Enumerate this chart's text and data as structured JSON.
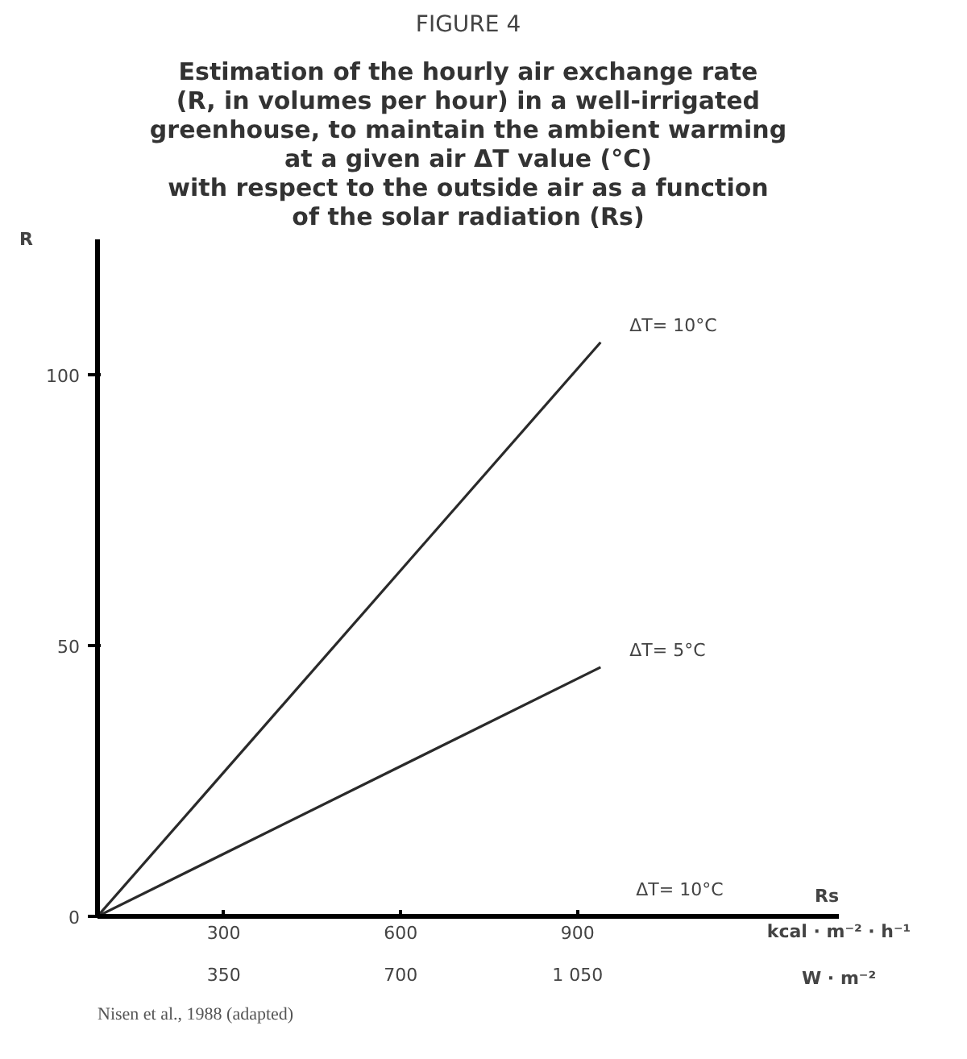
{
  "chart_data": {
    "type": "line",
    "title": "FIGURE 4",
    "subtitle": "Estimation of the hourly air exchange rate\n(R, in volumes per hour) in a well-irrigated\ngreenhouse, to maintain the ambient warming\nat a given air ΔT value (°C)\nwith respect to the outside air as a function\nof the solar radiation (Rs)",
    "ylabel": "R",
    "xlabel": "kcal · m⁻² · h⁻¹",
    "x2label": "W · m⁻²",
    "series": [
      {
        "name": "ΔT= 10°C",
        "color": "#2a2a2a",
        "values": [
          0,
          106
        ]
      },
      {
        "name": "ΔT= 5°C",
        "color": "#2a2a2a",
        "values": [
          0,
          46
        ]
      }
    ],
    "x": [
      86,
      939
    ],
    "xlim": [
      86,
      1343
    ],
    "xticks": [
      300,
      600,
      900
    ],
    "x2lim": [
      100,
      1567
    ],
    "x2ticks": [
      350,
      700,
      {
        "value": 1050,
        "label": "1 050"
      }
    ],
    "ylim": [
      0,
      125
    ],
    "yticks": [
      0,
      50,
      100
    ],
    "grid": false,
    "marker": "none",
    "line_style": "solid",
    "annotations": [
      "Rs",
      "ΔT= 10°C",
      "Nisen et al., 1988 (adapted)"
    ]
  }
}
